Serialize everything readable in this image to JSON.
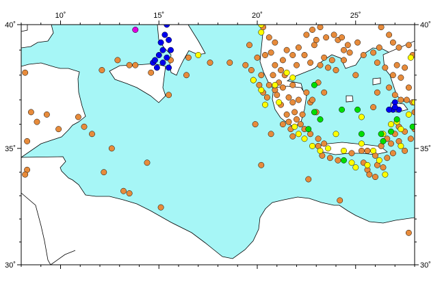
{
  "map": {
    "projection": "mercator",
    "lon_range": [
      8,
      28
    ],
    "lat_range": [
      30,
      40
    ],
    "sea_color": "#a6f6f6",
    "land_color": "#ffffff",
    "border_color": "#000000",
    "lon_ticks": [
      {
        "value": 10,
        "label": "10˚"
      },
      {
        "value": 15,
        "label": "15˚"
      },
      {
        "value": 20,
        "label": "20˚"
      },
      {
        "value": 25,
        "label": "25˚"
      }
    ],
    "lat_ticks": [
      {
        "value": 30,
        "label": "30˚"
      },
      {
        "value": 35,
        "label": "35˚"
      },
      {
        "value": 40,
        "label": "40˚"
      }
    ]
  },
  "chart_data": {
    "type": "scatter",
    "title": "",
    "xlabel": "",
    "ylabel": "",
    "xlim": [
      8,
      28
    ],
    "ylim": [
      30,
      40
    ],
    "series": [
      {
        "color": "#e78b3b",
        "points": [
          [
            8.2,
            38.1
          ],
          [
            8.5,
            36.5
          ],
          [
            8.8,
            36.1
          ],
          [
            8.3,
            35.3
          ],
          [
            8.3,
            34.1
          ],
          [
            8.2,
            33.9
          ],
          [
            9.3,
            36.4
          ],
          [
            9.9,
            35.8
          ],
          [
            10.9,
            36.3
          ],
          [
            11.2,
            35.9
          ],
          [
            11.6,
            35.6
          ],
          [
            12.1,
            38.2
          ],
          [
            12.9,
            38.6
          ],
          [
            13.5,
            38.4
          ],
          [
            12.2,
            34.0
          ],
          [
            12.6,
            35.0
          ],
          [
            13.8,
            38.4
          ],
          [
            14.4,
            34.4
          ],
          [
            13.2,
            33.2
          ],
          [
            13.5,
            33.1
          ],
          [
            15.1,
            32.5
          ],
          [
            15.5,
            37.2
          ],
          [
            16.4,
            38.0
          ],
          [
            16.5,
            38.7
          ],
          [
            17.6,
            38.5
          ],
          [
            14.6,
            38.1
          ],
          [
            15.6,
            38.6
          ],
          [
            18.6,
            38.5
          ],
          [
            19.9,
            36.0
          ],
          [
            20.2,
            34.3
          ],
          [
            19.4,
            38.4
          ],
          [
            19.7,
            38.2
          ],
          [
            19.8,
            37.8
          ],
          [
            20.1,
            37.6
          ],
          [
            20.2,
            38.0
          ],
          [
            20.3,
            37.3
          ],
          [
            20.5,
            37.1
          ],
          [
            20.6,
            37.6
          ],
          [
            20.8,
            38.0
          ],
          [
            20.9,
            37.4
          ],
          [
            21.0,
            37.2
          ],
          [
            21.1,
            37.7
          ],
          [
            21.3,
            37.5
          ],
          [
            21.4,
            38.0
          ],
          [
            21.6,
            37.1
          ],
          [
            21.8,
            37.6
          ],
          [
            21.2,
            36.8
          ],
          [
            21.5,
            36.4
          ],
          [
            21.6,
            36.1
          ],
          [
            21.7,
            35.8
          ],
          [
            21.8,
            35.5
          ],
          [
            21.3,
            36.0
          ],
          [
            21.9,
            36.5
          ],
          [
            22.0,
            36.2
          ],
          [
            22.2,
            36.0
          ],
          [
            22.4,
            35.8
          ],
          [
            22.7,
            35.6
          ],
          [
            20.7,
            35.6
          ],
          [
            20.3,
            39.9
          ],
          [
            20.6,
            39.5
          ],
          [
            20.7,
            38.9
          ],
          [
            20.9,
            39.3
          ],
          [
            21.3,
            38.6
          ],
          [
            21.5,
            39.0
          ],
          [
            21.8,
            38.8
          ],
          [
            22.0,
            38.4
          ],
          [
            22.1,
            39.1
          ],
          [
            22.4,
            38.8
          ],
          [
            22.7,
            38.5
          ],
          [
            22.9,
            39.2
          ],
          [
            23.2,
            38.4
          ],
          [
            23.4,
            38.7
          ],
          [
            23.6,
            38.3
          ],
          [
            23.8,
            38.6
          ],
          [
            24.0,
            38.2
          ],
          [
            24.1,
            39.4
          ],
          [
            24.4,
            39.0
          ],
          [
            24.7,
            38.9
          ],
          [
            22.8,
            39.8
          ],
          [
            23.0,
            39.4
          ],
          [
            23.2,
            39.9
          ],
          [
            23.9,
            39.6
          ],
          [
            24.3,
            39.5
          ],
          [
            25.1,
            39.3
          ],
          [
            25.4,
            38.8
          ],
          [
            25.9,
            38.9
          ],
          [
            26.2,
            39.1
          ],
          [
            26.1,
            38.5
          ],
          [
            26.5,
            38.3
          ],
          [
            26.9,
            38.0
          ],
          [
            27.1,
            38.4
          ],
          [
            27.3,
            37.9
          ],
          [
            27.5,
            38.3
          ],
          [
            27.7,
            37.5
          ],
          [
            27.9,
            38.8
          ],
          [
            27.7,
            39.2
          ],
          [
            26.7,
            39.6
          ],
          [
            26.9,
            39.3
          ],
          [
            27.2,
            39.1
          ],
          [
            26.3,
            39.9
          ],
          [
            27.6,
            37.0
          ],
          [
            27.9,
            36.9
          ],
          [
            28.0,
            36.5
          ],
          [
            27.0,
            37.2
          ],
          [
            22.3,
            36.4
          ],
          [
            22.7,
            36.9
          ],
          [
            23.0,
            36.5
          ],
          [
            23.1,
            35.4
          ],
          [
            23.4,
            35.2
          ],
          [
            23.1,
            35.1
          ],
          [
            23.3,
            34.7
          ],
          [
            23.7,
            34.6
          ],
          [
            24.1,
            34.5
          ],
          [
            24.8,
            34.8
          ],
          [
            25.3,
            34.9
          ],
          [
            25.6,
            34.9
          ],
          [
            26.0,
            34.7
          ],
          [
            25.4,
            34.4
          ],
          [
            25.6,
            34.1
          ],
          [
            26.1,
            34.3
          ],
          [
            25.7,
            33.9
          ],
          [
            26.0,
            33.8
          ],
          [
            26.4,
            34.2
          ],
          [
            26.6,
            34.6
          ],
          [
            26.9,
            34.8
          ],
          [
            26.3,
            35.1
          ],
          [
            26.6,
            35.4
          ],
          [
            27.0,
            35.6
          ],
          [
            27.2,
            35.3
          ],
          [
            27.5,
            35.7
          ],
          [
            27.8,
            35.4
          ],
          [
            27.5,
            34.9
          ],
          [
            27.2,
            35.9
          ],
          [
            26.8,
            35.2
          ],
          [
            22.6,
            33.7
          ],
          [
            24.2,
            32.8
          ],
          [
            27.7,
            31.4
          ],
          [
            28.0,
            35.8
          ],
          [
            26.1,
            37.3
          ],
          [
            26.7,
            37.5
          ],
          [
            27.3,
            37.0
          ],
          [
            25.9,
            36.7
          ],
          [
            20.9,
            38.4
          ],
          [
            21.2,
            38.2
          ],
          [
            20.4,
            38.8
          ],
          [
            20.0,
            38.7
          ],
          [
            19.6,
            39.2
          ],
          [
            22.5,
            39.6
          ],
          [
            23.5,
            39.5
          ],
          [
            24.6,
            39.2
          ],
          [
            24.4,
            38.6
          ],
          [
            25.0,
            38.0
          ],
          [
            21.8,
            36.9
          ],
          [
            22.1,
            37.0
          ],
          [
            22.5,
            37.3
          ],
          [
            22.8,
            37.0
          ],
          [
            23.1,
            37.7
          ],
          [
            23.4,
            37.3
          ]
        ]
      },
      {
        "color": "#ffff00",
        "points": [
          [
            20.2,
            40.0
          ],
          [
            20.2,
            39.7
          ],
          [
            17.0,
            38.8
          ],
          [
            19.8,
            37.8
          ],
          [
            20.2,
            37.4
          ],
          [
            20.4,
            36.8
          ],
          [
            20.9,
            37.6
          ],
          [
            21.1,
            36.9
          ],
          [
            21.5,
            38.1
          ],
          [
            21.8,
            37.9
          ],
          [
            21.9,
            35.9
          ],
          [
            22.1,
            35.6
          ],
          [
            22.4,
            35.4
          ],
          [
            22.8,
            35.1
          ],
          [
            23.2,
            34.9
          ],
          [
            23.6,
            35.0
          ],
          [
            24.0,
            35.6
          ],
          [
            24.4,
            34.9
          ],
          [
            24.8,
            34.4
          ],
          [
            25.0,
            34.2
          ],
          [
            25.3,
            35.2
          ],
          [
            25.6,
            34.3
          ],
          [
            25.9,
            34.9
          ],
          [
            26.2,
            34.5
          ],
          [
            26.5,
            33.9
          ],
          [
            26.4,
            35.6
          ],
          [
            26.8,
            36.0
          ],
          [
            27.1,
            36.1
          ],
          [
            27.3,
            35.8
          ],
          [
            27.7,
            36.4
          ],
          [
            28.0,
            36.9
          ],
          [
            27.3,
            35.1
          ],
          [
            25.3,
            36.3
          ],
          [
            27.8,
            38.7
          ]
        ]
      },
      {
        "color": "#00dd00",
        "points": [
          [
            22.9,
            37.6
          ],
          [
            22.9,
            36.5
          ],
          [
            22.6,
            35.8
          ],
          [
            23.2,
            36.2
          ],
          [
            24.3,
            36.6
          ],
          [
            25.1,
            36.6
          ],
          [
            25.3,
            35.6
          ],
          [
            26.3,
            35.6
          ],
          [
            26.4,
            35.3
          ],
          [
            26.8,
            35.7
          ],
          [
            27.1,
            36.2
          ],
          [
            27.9,
            35.9
          ],
          [
            24.4,
            34.5
          ]
        ]
      },
      {
        "color": "#0000ee",
        "points": [
          [
            15.4,
            40.0
          ],
          [
            15.3,
            39.6
          ],
          [
            15.1,
            39.3
          ],
          [
            15.5,
            39.4
          ],
          [
            15.2,
            39.0
          ],
          [
            15.6,
            39.0
          ],
          [
            15.0,
            38.8
          ],
          [
            15.4,
            38.7
          ],
          [
            14.7,
            38.5
          ],
          [
            15.2,
            38.5
          ],
          [
            14.9,
            38.3
          ],
          [
            14.8,
            38.6
          ],
          [
            15.5,
            38.3
          ],
          [
            27.0,
            36.9
          ],
          [
            26.9,
            36.6
          ],
          [
            27.2,
            36.6
          ],
          [
            26.7,
            36.6
          ],
          [
            27.0,
            36.7
          ]
        ]
      },
      {
        "color": "#dd00dd",
        "points": [
          [
            13.8,
            39.8
          ]
        ]
      }
    ]
  }
}
